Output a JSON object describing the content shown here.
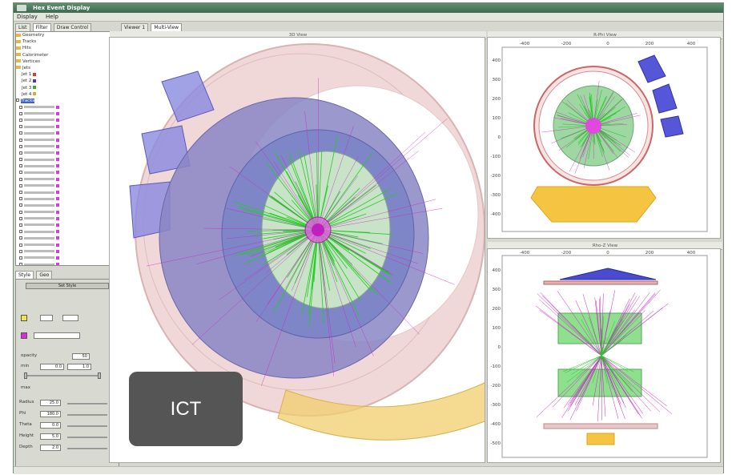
{
  "window": {
    "title": "Hex Event Display"
  },
  "menu": [
    "Display",
    "Help"
  ],
  "left_tabs": [
    "List",
    "Filter",
    "Draw Control"
  ],
  "tree": {
    "folders": [
      "Geometry",
      "Tracks",
      "Hits",
      "Calorimeter",
      "Vertices",
      "Jets"
    ],
    "subitems": [
      "Jet 1",
      "Jet 2",
      "Jet 3",
      "Jet 4"
    ],
    "selected": "Tracks",
    "track_rows": 25
  },
  "control_tabs": [
    "Style",
    "Geo"
  ],
  "controls": {
    "apply_button": "Set Style",
    "opacity_label": "opacity",
    "opacity_value": "50",
    "min_label": "min",
    "min_value": "0.0",
    "max_label": "max",
    "max_value": "1.0",
    "spin_labels": [
      "Radius",
      "Phi",
      "Theta",
      "Height",
      "Depth"
    ],
    "spin_values": [
      "25.0",
      "180.0",
      "0.0",
      "5.0",
      "2.0"
    ]
  },
  "main_tabs": [
    "Viewer 1",
    "Multi-View"
  ],
  "views": {
    "v3d": "3D View",
    "rphi": "R-Phi View",
    "rz": "Rho-Z View"
  },
  "axes": {
    "ticks_x": [
      "-400",
      "-200",
      "0",
      "200",
      "400"
    ],
    "ticks_y_rphi": [
      "400",
      "300",
      "200",
      "100",
      "0",
      "-100",
      "-200",
      "-300",
      "-400"
    ],
    "ticks_y_rz": [
      "400",
      "300",
      "200",
      "100",
      "0",
      "-100",
      "-200",
      "-300",
      "-400",
      "-500"
    ]
  },
  "badge": {
    "text": "ICT"
  },
  "colors": {
    "title": "#4a7a5c",
    "tracks": "#22cc22",
    "hits": "#cc22cc",
    "muon": "#5858d8",
    "calo": "#f5c542",
    "barrel": "#e8b8b8"
  }
}
